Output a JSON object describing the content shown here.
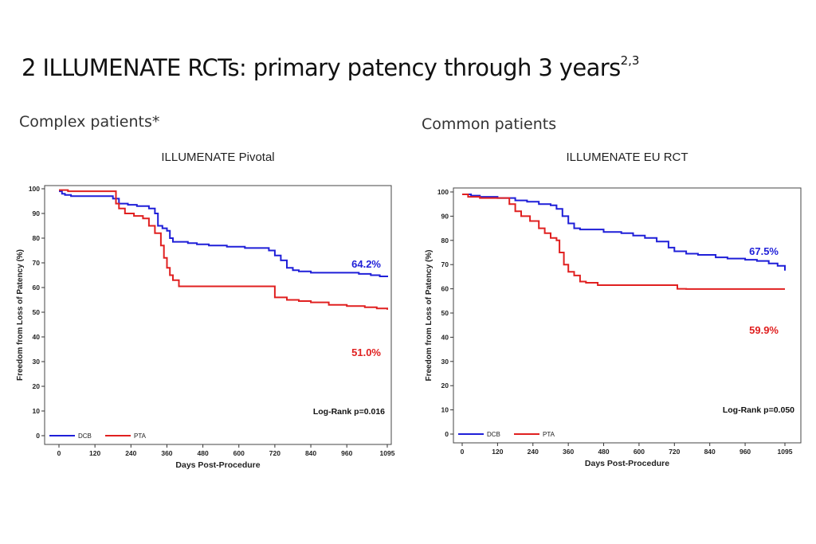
{
  "page": {
    "title": "2 ILLUMENATE RCTs: primary patency through 3 years",
    "title_superscript": "2,3",
    "left_section": "Complex patients*",
    "right_section": "Common patients"
  },
  "colors": {
    "dcb": "#1f1fd8",
    "pta": "#e02020",
    "axis": "#333333",
    "frame": "#444444"
  },
  "chart_data": [
    {
      "type": "line",
      "title": "ILLUMENATE Pivotal",
      "xlabel": "Days Post-Procedure",
      "ylabel": "Freedom from Loss of Patency (%)",
      "xlim": [
        0,
        1095
      ],
      "ylim": [
        0,
        100
      ],
      "xticks": [
        0,
        120,
        240,
        360,
        480,
        600,
        720,
        840,
        960,
        1095
      ],
      "yticks": [
        0,
        10,
        20,
        30,
        40,
        50,
        60,
        70,
        80,
        90,
        100
      ],
      "annotation": "Log-Rank p=0.016",
      "legend": [
        "DCB",
        "PTA"
      ],
      "series": [
        {
          "name": "DCB",
          "end_label": "64.2%",
          "x": [
            0,
            10,
            20,
            40,
            60,
            100,
            160,
            180,
            200,
            230,
            260,
            300,
            320,
            330,
            345,
            360,
            370,
            380,
            400,
            430,
            460,
            500,
            560,
            620,
            680,
            700,
            720,
            740,
            760,
            780,
            800,
            840,
            900,
            960,
            1000,
            1040,
            1070,
            1095
          ],
          "y": [
            99,
            98,
            97.5,
            97,
            97,
            97,
            97,
            96,
            94,
            93.5,
            93,
            92,
            90,
            85,
            84,
            83,
            80,
            78.5,
            78.5,
            78,
            77.5,
            77,
            76.5,
            76,
            76,
            75,
            73,
            71,
            68,
            67,
            66.5,
            66,
            66,
            66,
            65.5,
            65,
            64.5,
            64.2
          ]
        },
        {
          "name": "PTA",
          "end_label": "51.0%",
          "x": [
            0,
            10,
            30,
            60,
            100,
            160,
            190,
            200,
            220,
            250,
            280,
            300,
            320,
            340,
            350,
            360,
            370,
            380,
            400,
            420,
            480,
            560,
            640,
            700,
            720,
            760,
            800,
            840,
            900,
            960,
            1020,
            1060,
            1095
          ],
          "y": [
            99.5,
            99.5,
            99,
            99,
            99,
            99,
            94,
            92,
            90,
            89,
            88,
            85,
            82,
            77,
            72,
            68,
            65,
            63,
            60.5,
            60.5,
            60.5,
            60.5,
            60.5,
            60.5,
            56,
            55,
            54.5,
            54,
            53,
            52.5,
            52,
            51.5,
            51.0
          ]
        }
      ]
    },
    {
      "type": "line",
      "title": "ILLUMENATE EU RCT",
      "xlabel": "Days Post-Procedure",
      "ylabel": "Freedom from Loss of Patency (%)",
      "xlim": [
        0,
        1095
      ],
      "ylim": [
        0,
        100
      ],
      "xticks": [
        0,
        120,
        240,
        360,
        480,
        600,
        720,
        840,
        960,
        1095
      ],
      "yticks": [
        0,
        10,
        20,
        30,
        40,
        50,
        60,
        70,
        80,
        90,
        100
      ],
      "annotation": "Log-Rank p=0.050",
      "legend": [
        "DCB",
        "PTA"
      ],
      "series": [
        {
          "name": "DCB",
          "end_label": "67.5%",
          "x": [
            0,
            30,
            60,
            120,
            180,
            220,
            260,
            300,
            320,
            340,
            360,
            380,
            400,
            440,
            480,
            540,
            580,
            620,
            660,
            700,
            720,
            760,
            800,
            860,
            900,
            960,
            1000,
            1040,
            1070,
            1095
          ],
          "y": [
            99,
            98.5,
            98,
            97.5,
            96.5,
            96,
            95,
            94.5,
            93,
            90,
            87,
            85,
            84.5,
            84.5,
            83.5,
            83,
            82,
            81,
            79.5,
            77,
            75.5,
            74.5,
            74,
            73,
            72.5,
            72,
            71.5,
            70.5,
            69.5,
            67.5
          ]
        },
        {
          "name": "PTA",
          "end_label": "59.9%",
          "x": [
            0,
            20,
            60,
            120,
            160,
            180,
            200,
            230,
            260,
            280,
            300,
            320,
            330,
            345,
            360,
            380,
            400,
            420,
            460,
            520,
            600,
            680,
            730,
            760,
            840,
            960,
            1095
          ],
          "y": [
            99,
            98,
            97.5,
            97.5,
            95,
            92,
            90,
            88,
            85,
            83,
            81,
            80,
            75,
            70,
            67,
            65.5,
            63,
            62.5,
            61.5,
            61.5,
            61.5,
            61.5,
            60,
            59.9,
            59.9,
            59.9,
            59.9
          ]
        }
      ]
    }
  ]
}
